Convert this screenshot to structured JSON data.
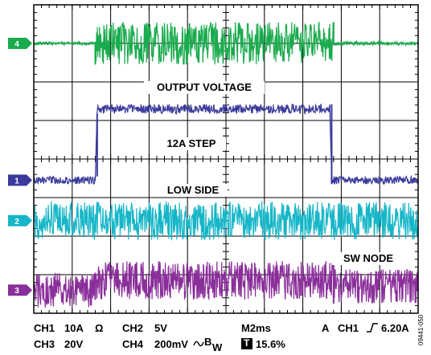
{
  "chart_data": {
    "type": "line",
    "title": "",
    "xlabel": "",
    "ylabel": "",
    "grid": true,
    "divisions": {
      "x": 10,
      "y": 8
    },
    "annotations": [
      {
        "text": "OUTPUT VOLTAGE"
      },
      {
        "text": "12A STEP"
      },
      {
        "text": "LOW SIDE"
      },
      {
        "text": "SW NODE"
      }
    ],
    "channel_markers": [
      "4",
      "1",
      "2",
      "3"
    ],
    "series": [
      {
        "name": "4",
        "color": "#1aab4e",
        "x_div": [
          0,
          1.6,
          1.6,
          7.8,
          7.8,
          10
        ],
        "y_div": [
          1.0,
          1.0,
          1.0,
          1.0,
          1.0,
          1.0
        ],
        "noise_div": [
          0.04,
          0.04,
          0.55,
          0.55,
          0.05,
          0.05
        ]
      },
      {
        "name": "1",
        "color": "#3a3a9c",
        "x_div": [
          0,
          1.6,
          1.65,
          7.7,
          7.75,
          10
        ],
        "y_div": [
          4.55,
          4.55,
          2.7,
          2.7,
          4.55,
          4.55
        ],
        "noise_div": [
          0.1,
          0.1,
          0.12,
          0.12,
          0.1,
          0.1
        ]
      },
      {
        "name": "2",
        "color": "#16b6c8",
        "x_div": [
          0,
          10
        ],
        "y_div": [
          5.6,
          5.6
        ],
        "noise_div": [
          0.5,
          0.5
        ]
      },
      {
        "name": "3",
        "color": "#8a2e9a",
        "x_div": [
          0,
          1.6,
          1.6,
          7.8,
          7.8,
          10
        ],
        "y_div": [
          7.4,
          7.4,
          7.15,
          7.15,
          7.3,
          7.3
        ],
        "noise_div": [
          0.45,
          0.45,
          0.5,
          0.5,
          0.45,
          0.45
        ]
      }
    ]
  },
  "readout": {
    "ch1": "CH1",
    "ch1_scale": "10A",
    "ohm": "Ω",
    "ch2": "CH2",
    "ch2_scale": "5V",
    "timebase": "M2ms",
    "trig_a": "A",
    "trig_ch": "CH1",
    "trig_level": "6.20A",
    "ch3": "CH3",
    "ch3_scale": "20V",
    "ch4": "CH4",
    "ch4_scale": "200mV",
    "bw": "B",
    "bw_sub": "W",
    "t_icon": "T",
    "t_pos": "15.6%"
  },
  "figure_id": "09441-050"
}
